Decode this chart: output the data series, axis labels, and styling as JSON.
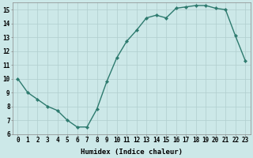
{
  "x": [
    0,
    1,
    2,
    3,
    4,
    5,
    6,
    7,
    8,
    9,
    10,
    11,
    12,
    13,
    14,
    15,
    16,
    17,
    18,
    19,
    20,
    21,
    22,
    23
  ],
  "y": [
    10.0,
    9.0,
    8.5,
    8.0,
    7.7,
    7.0,
    6.5,
    6.5,
    7.8,
    9.8,
    11.5,
    12.7,
    13.5,
    14.4,
    14.6,
    14.4,
    15.1,
    15.2,
    15.3,
    15.3,
    15.1,
    15.0,
    13.1,
    11.3
  ],
  "line_color": "#2d7a6e",
  "marker_color": "#2d7a6e",
  "bg_color": "#cce8e8",
  "grid_color": "#b0cece",
  "xlabel": "Humidex (Indice chaleur)",
  "ylim": [
    6,
    15.5
  ],
  "xlim": [
    -0.5,
    23.5
  ],
  "yticks": [
    6,
    7,
    8,
    9,
    10,
    11,
    12,
    13,
    14,
    15
  ],
  "xticks": [
    0,
    1,
    2,
    3,
    4,
    5,
    6,
    7,
    8,
    9,
    10,
    11,
    12,
    13,
    14,
    15,
    16,
    17,
    18,
    19,
    20,
    21,
    22,
    23
  ],
  "xtick_labels": [
    "0",
    "1",
    "2",
    "3",
    "4",
    "5",
    "6",
    "7",
    "8",
    "9",
    "10",
    "11",
    "12",
    "13",
    "14",
    "15",
    "16",
    "17",
    "18",
    "19",
    "20",
    "21",
    "22",
    "23"
  ],
  "xlabel_fontsize": 6.5,
  "tick_fontsize": 5.5,
  "linewidth": 1.0,
  "markersize": 2.2
}
